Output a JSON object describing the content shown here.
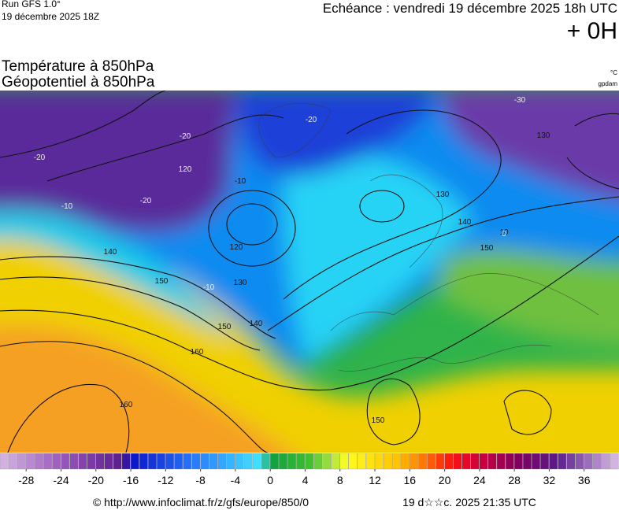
{
  "header": {
    "run": "Run GFS 1.0°",
    "run_date": "19 décembre 2025 18Z",
    "echeance": "Echéance : vendredi 19 décembre 2025 18h UTC",
    "lead": "+ 0H"
  },
  "titles": {
    "line1": "Température à 850hPa",
    "line2": "Géopotentiel à 850hPa",
    "unit1": "°C",
    "unit2": "gpdam"
  },
  "map": {
    "contour_labels": [
      "-20",
      "120",
      "-20",
      "-20",
      "-10",
      "-10",
      "140",
      "150",
      "130",
      "140",
      "150",
      "160",
      "160",
      "-10",
      "10",
      "120",
      "130",
      "140",
      "150",
      "0",
      "150",
      "130",
      "-30",
      "-20"
    ]
  },
  "colorbar": {
    "lim": [
      -31,
      40
    ],
    "ticks": [
      -28,
      -24,
      -20,
      -16,
      -12,
      -8,
      -4,
      0,
      4,
      8,
      12,
      16,
      20,
      24,
      28,
      32,
      36
    ]
  },
  "footer": {
    "source": "© http://www.infoclimat.fr/z/gfs/europe/850/0",
    "timestamp": "19 d☆☆c. 2025 21:35 UTC"
  }
}
